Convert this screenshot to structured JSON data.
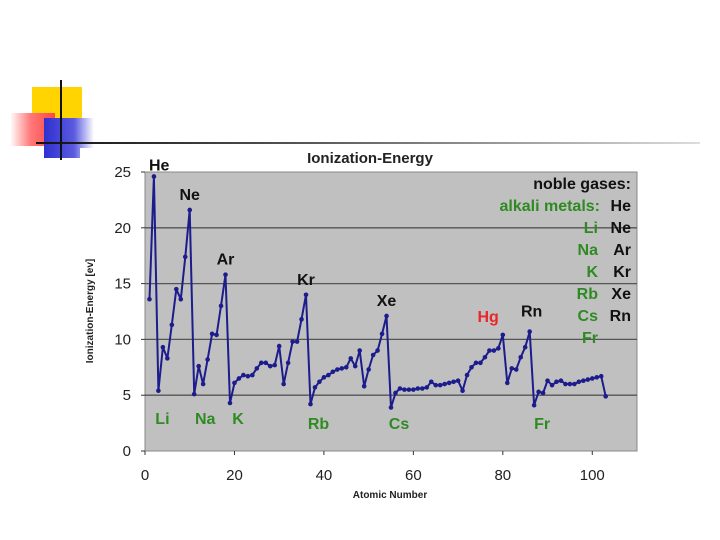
{
  "chart_data": {
    "type": "line",
    "title": "Ionization-Energy",
    "xlabel": "Atomic Number",
    "ylabel": "Ionization-Energy [ev]",
    "xlim": [
      0,
      110
    ],
    "ylim": [
      0,
      25
    ],
    "xticks": [
      "0",
      "20",
      "40",
      "60",
      "80",
      "100"
    ],
    "yticks": [
      "0",
      "5",
      "10",
      "15",
      "20",
      "25"
    ],
    "grid": true,
    "series": [
      {
        "color": "#1c1c8c",
        "x": [
          1,
          2,
          3,
          4,
          5,
          6,
          7,
          8,
          9,
          10,
          11,
          12,
          13,
          14,
          15,
          16,
          17,
          18,
          19,
          20,
          21,
          22,
          23,
          24,
          25,
          26,
          27,
          28,
          29,
          30,
          31,
          32,
          33,
          34,
          35,
          36,
          37,
          38,
          39,
          40,
          41,
          42,
          43,
          44,
          45,
          46,
          47,
          48,
          49,
          50,
          51,
          52,
          53,
          54,
          55,
          56,
          57,
          58,
          59,
          60,
          61,
          62,
          63,
          64,
          65,
          66,
          67,
          68,
          69,
          70,
          71,
          72,
          73,
          74,
          75,
          76,
          77,
          78,
          79,
          80,
          81,
          82,
          83,
          84,
          85,
          86,
          87,
          88,
          89,
          90,
          91,
          92,
          93,
          94,
          95,
          96,
          97,
          98,
          99,
          100,
          101,
          102,
          103
        ],
        "values": [
          13.6,
          24.6,
          5.4,
          9.3,
          8.3,
          11.3,
          14.5,
          13.6,
          17.4,
          21.6,
          5.1,
          7.6,
          6.0,
          8.2,
          10.5,
          10.4,
          13.0,
          15.8,
          4.3,
          6.1,
          6.5,
          6.8,
          6.7,
          6.8,
          7.4,
          7.9,
          7.9,
          7.6,
          7.7,
          9.4,
          6.0,
          7.9,
          9.8,
          9.8,
          11.8,
          14.0,
          4.2,
          5.7,
          6.2,
          6.6,
          6.8,
          7.1,
          7.3,
          7.4,
          7.5,
          8.3,
          7.6,
          9.0,
          5.8,
          7.3,
          8.6,
          9.0,
          10.5,
          12.1,
          3.9,
          5.2,
          5.6,
          5.5,
          5.5,
          5.5,
          5.6,
          5.6,
          5.7,
          6.2,
          5.9,
          5.9,
          6.0,
          6.1,
          6.2,
          6.3,
          5.4,
          6.8,
          7.5,
          7.9,
          7.9,
          8.4,
          9.0,
          9.0,
          9.2,
          10.4,
          6.1,
          7.4,
          7.3,
          8.4,
          9.3,
          10.7,
          4.1,
          5.3,
          5.2,
          6.3,
          5.9,
          6.2,
          6.3,
          6.0,
          6.0,
          6.0,
          6.2,
          6.3,
          6.4,
          6.5,
          6.6,
          6.7,
          4.9
        ]
      }
    ],
    "annotations": {
      "peaks": [
        {
          "text": "He",
          "x": 2,
          "y": 24.6,
          "color": "#111111"
        },
        {
          "text": "Ne",
          "x": 10,
          "y": 21.6,
          "color": "#111111"
        },
        {
          "text": "Ar",
          "x": 18,
          "y": 15.8,
          "color": "#111111"
        },
        {
          "text": "Kr",
          "x": 36,
          "y": 14.0,
          "color": "#111111"
        },
        {
          "text": "Xe",
          "x": 54,
          "y": 12.1,
          "color": "#111111"
        },
        {
          "text": "Hg",
          "x": 80,
          "y": 10.4,
          "color": "#e8262b"
        },
        {
          "text": "Rn",
          "x": 86,
          "y": 10.7,
          "color": "#111111"
        }
      ],
      "troughs": [
        {
          "text": "Li",
          "x": 3,
          "color": "#2e8b22"
        },
        {
          "text": "Na",
          "x": 11,
          "color": "#2e8b22"
        },
        {
          "text": "K",
          "x": 19,
          "color": "#2e8b22"
        },
        {
          "text": "Rb",
          "x": 37,
          "color": "#2e8b22"
        },
        {
          "text": "Cs",
          "x": 55,
          "color": "#2e8b22"
        },
        {
          "text": "Fr",
          "x": 87,
          "color": "#2e8b22"
        }
      ]
    },
    "legend": {
      "noble_header": "noble gases:",
      "alkali_header": "alkali metals:",
      "noble": [
        "He",
        "Ne",
        "Ar",
        "Kr",
        "Xe",
        "Rn"
      ],
      "alkali": [
        "Li",
        "Na",
        "K",
        "Rb",
        "Cs",
        "Fr"
      ],
      "noble_color": "#111111",
      "alkali_color": "#2e8b22"
    }
  },
  "decoration": {
    "yellow": "#ffd400",
    "red": "#ff4b4b",
    "blue": "#3d3dd6",
    "line_color": "#111111",
    "plot_bg": "#c0c0c0",
    "frame_bg": "#ffffff"
  }
}
